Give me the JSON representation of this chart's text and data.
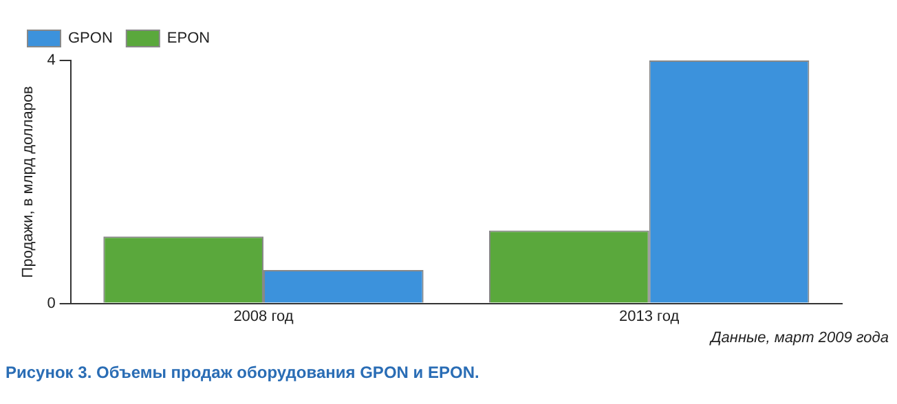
{
  "chart_data": {
    "type": "bar",
    "title": "Рисунок 3. Объемы продаж оборудования GPON и EPON.",
    "ylabel": "Продажи, в млрд долларов",
    "annotations": [
      "Данные, март 2009 года"
    ],
    "categories": [
      "2008 год",
      "2013 год"
    ],
    "series": [
      {
        "name": "EPON",
        "color": "#5aa83c",
        "values": [
          1.1,
          1.2
        ]
      },
      {
        "name": "GPON",
        "color": "#3c92dc",
        "values": [
          0.55,
          4.0
        ]
      }
    ],
    "ylim": [
      0,
      4
    ],
    "yticks": [
      0,
      4
    ],
    "grid": false,
    "legend": "top left"
  }
}
